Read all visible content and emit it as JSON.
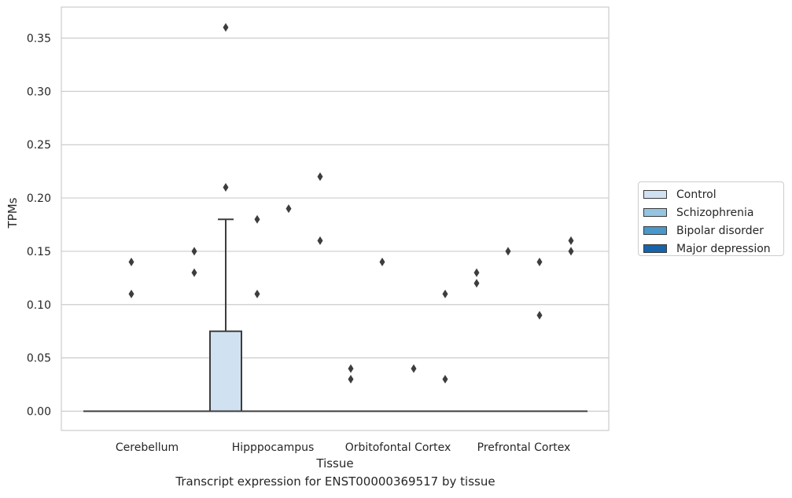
{
  "chart_data": {
    "type": "box",
    "caption": "Transcript expression for ENST00000369517 by tissue",
    "xlabel": "Tissue",
    "ylabel": "TPMs",
    "ylim": [
      -0.017,
      0.378
    ],
    "yticks": [
      "0.00",
      "0.05",
      "0.10",
      "0.15",
      "0.20",
      "0.25",
      "0.30",
      "0.35"
    ],
    "grid": true,
    "legend_position": "right",
    "categories": [
      "Cerebellum",
      "Hipppocampus",
      "Orbitofontal Cortex",
      "Prefrontal Cortex"
    ],
    "series": [
      {
        "name": "Control",
        "color": "#d0e1f2"
      },
      {
        "name": "Schizophrenia",
        "color": "#94c4df"
      },
      {
        "name": "Bipolar disorder",
        "color": "#4a98c9"
      },
      {
        "name": "Major depression",
        "color": "#1764ab"
      }
    ],
    "boxes": [
      {
        "category": "Cerebellum",
        "series": "Control",
        "q1": 0,
        "median": 0,
        "q3": 0,
        "whisker_low": 0,
        "whisker_high": 0,
        "outliers": []
      },
      {
        "category": "Cerebellum",
        "series": "Schizophrenia",
        "q1": 0,
        "median": 0,
        "q3": 0,
        "whisker_low": 0,
        "whisker_high": 0,
        "outliers": [
          0.14,
          0.11
        ]
      },
      {
        "category": "Cerebellum",
        "series": "Bipolar disorder",
        "q1": 0,
        "median": 0,
        "q3": 0,
        "whisker_low": 0,
        "whisker_high": 0,
        "outliers": []
      },
      {
        "category": "Cerebellum",
        "series": "Major depression",
        "q1": 0,
        "median": 0,
        "q3": 0,
        "whisker_low": 0,
        "whisker_high": 0,
        "outliers": [
          0.15,
          0.13
        ]
      },
      {
        "category": "Hipppocampus",
        "series": "Control",
        "q1": 0,
        "median": 0,
        "q3": 0.075,
        "whisker_low": 0,
        "whisker_high": 0.18,
        "outliers": [
          0.36,
          0.21
        ]
      },
      {
        "category": "Hipppocampus",
        "series": "Schizophrenia",
        "q1": 0,
        "median": 0,
        "q3": 0,
        "whisker_low": 0,
        "whisker_high": 0,
        "outliers": [
          0.18,
          0.11
        ]
      },
      {
        "category": "Hipppocampus",
        "series": "Bipolar disorder",
        "q1": 0,
        "median": 0,
        "q3": 0,
        "whisker_low": 0,
        "whisker_high": 0,
        "outliers": [
          0.19
        ]
      },
      {
        "category": "Hipppocampus",
        "series": "Major depression",
        "q1": 0,
        "median": 0,
        "q3": 0,
        "whisker_low": 0,
        "whisker_high": 0,
        "outliers": [
          0.22,
          0.16
        ]
      },
      {
        "category": "Orbitofontal Cortex",
        "series": "Control",
        "q1": 0,
        "median": 0,
        "q3": 0,
        "whisker_low": 0,
        "whisker_high": 0,
        "outliers": [
          0.04,
          0.03
        ]
      },
      {
        "category": "Orbitofontal Cortex",
        "series": "Schizophrenia",
        "q1": 0,
        "median": 0,
        "q3": 0,
        "whisker_low": 0,
        "whisker_high": 0,
        "outliers": [
          0.14
        ]
      },
      {
        "category": "Orbitofontal Cortex",
        "series": "Bipolar disorder",
        "q1": 0,
        "median": 0,
        "q3": 0,
        "whisker_low": 0,
        "whisker_high": 0,
        "outliers": [
          0.04
        ]
      },
      {
        "category": "Orbitofontal Cortex",
        "series": "Major depression",
        "q1": 0,
        "median": 0,
        "q3": 0,
        "whisker_low": 0,
        "whisker_high": 0,
        "outliers": [
          0.11,
          0.03
        ]
      },
      {
        "category": "Prefrontal Cortex",
        "series": "Control",
        "q1": 0,
        "median": 0,
        "q3": 0,
        "whisker_low": 0,
        "whisker_high": 0,
        "outliers": [
          0.13,
          0.12
        ]
      },
      {
        "category": "Prefrontal Cortex",
        "series": "Schizophrenia",
        "q1": 0,
        "median": 0,
        "q3": 0,
        "whisker_low": 0,
        "whisker_high": 0,
        "outliers": [
          0.15
        ]
      },
      {
        "category": "Prefrontal Cortex",
        "series": "Bipolar disorder",
        "q1": 0,
        "median": 0,
        "q3": 0,
        "whisker_low": 0,
        "whisker_high": 0,
        "outliers": [
          0.14,
          0.09
        ]
      },
      {
        "category": "Prefrontal Cortex",
        "series": "Major depression",
        "q1": 0,
        "median": 0,
        "q3": 0,
        "whisker_low": 0,
        "whisker_high": 0,
        "outliers": [
          0.16,
          0.15
        ]
      }
    ]
  }
}
